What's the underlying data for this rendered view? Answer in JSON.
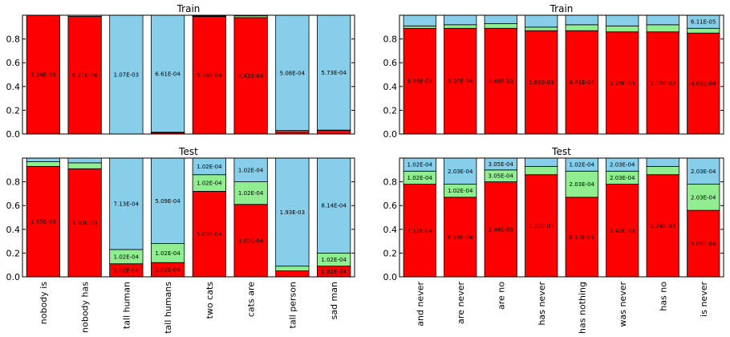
{
  "chart_data": [
    {
      "type": "bar",
      "stacked": true,
      "title": "Train",
      "categories": [
        "nobody is",
        "nobody has",
        "tall human",
        "tall humans",
        "two cats",
        "cats are",
        "tall person",
        "sad man"
      ],
      "ylim": [
        0,
        1
      ],
      "yticks": [
        "0.0",
        "0.2",
        "0.4",
        "0.6",
        "0.8"
      ],
      "series": [
        {
          "color": "#ff0000",
          "values": [
            1.0,
            0.99,
            0.0,
            0.01,
            0.99,
            0.98,
            0.02,
            0.03
          ],
          "labels": [
            "3.24E-03",
            "6.21E-04",
            "",
            "",
            "5.24E-04",
            "4.42E-04",
            "",
            ""
          ]
        },
        {
          "color": "#90ee90",
          "values": [
            0.0,
            0.0,
            0.0,
            0.005,
            0.005,
            0.015,
            0.01,
            0.003
          ],
          "labels": [
            "",
            "",
            "",
            "",
            "",
            "",
            "",
            ""
          ]
        },
        {
          "color": "#87ceeb",
          "values": [
            0.0,
            0.01,
            1.0,
            0.985,
            0.005,
            0.005,
            0.97,
            0.967
          ],
          "labels": [
            "",
            "",
            "1.07E-03",
            "6.61E-04",
            "",
            "",
            "5.08E-04",
            "5.73E-04"
          ]
        }
      ]
    },
    {
      "type": "bar",
      "stacked": true,
      "title": "Train",
      "categories": [
        "and never",
        "are never",
        "are no",
        "has never",
        "has nothing",
        "was never",
        "has no",
        "is never"
      ],
      "ylim": [
        0,
        1
      ],
      "yticks": [
        "0.0",
        "0.2",
        "0.4",
        "0.6",
        "0.8"
      ],
      "series": [
        {
          "color": "#ff0000",
          "values": [
            0.89,
            0.89,
            0.89,
            0.87,
            0.87,
            0.86,
            0.86,
            0.85
          ],
          "labels": [
            "5.58E-04",
            "5.07E-04",
            "4.49E-03",
            "1.69E-03",
            "4.41E-04",
            "1.29E-03",
            "2.15E-03",
            "4.69E-04"
          ]
        },
        {
          "color": "#90ee90",
          "values": [
            0.02,
            0.03,
            0.04,
            0.03,
            0.05,
            0.05,
            0.06,
            0.04
          ],
          "labels": [
            "",
            "",
            "",
            "",
            "",
            "",
            "",
            ""
          ]
        },
        {
          "color": "#87ceeb",
          "values": [
            0.09,
            0.08,
            0.07,
            0.1,
            0.08,
            0.09,
            0.08,
            0.11
          ],
          "labels": [
            "",
            "",
            "",
            "",
            "",
            "",
            "",
            "6.11E-05"
          ]
        }
      ]
    },
    {
      "type": "bar",
      "stacked": true,
      "title": "Test",
      "categories": [
        "nobody is",
        "nobody has",
        "tall human",
        "tall humans",
        "two cats",
        "cats are",
        "tall person",
        "sad man"
      ],
      "ylim": [
        0,
        1
      ],
      "yticks": [
        "0.0",
        "0.2",
        "0.4",
        "0.6",
        "0.8"
      ],
      "series": [
        {
          "color": "#ff0000",
          "values": [
            0.93,
            0.91,
            0.11,
            0.12,
            0.72,
            0.61,
            0.05,
            0.09
          ],
          "labels": [
            "2.65E-03",
            "1.83E-03",
            "1.02E-04",
            "1.02E-04",
            "5.09E-04",
            "3.05E-04",
            "",
            "1.02E-04"
          ]
        },
        {
          "color": "#90ee90",
          "values": [
            0.04,
            0.05,
            0.12,
            0.16,
            0.14,
            0.19,
            0.04,
            0.11
          ],
          "labels": [
            "",
            "",
            "1.02E-04",
            "1.02E-04",
            "1.02E-04",
            "1.02E-04",
            "",
            "1.02E-04"
          ]
        },
        {
          "color": "#87ceeb",
          "values": [
            0.03,
            0.04,
            0.77,
            0.72,
            0.14,
            0.2,
            0.91,
            0.8
          ],
          "labels": [
            "",
            "",
            "7.13E-04",
            "5.09E-04",
            "1.02E-04",
            "1.02E-04",
            "1.93E-03",
            "8.14E-04"
          ]
        }
      ]
    },
    {
      "type": "bar",
      "stacked": true,
      "title": "Test",
      "categories": [
        "and never",
        "are never",
        "are no",
        "has never",
        "has nothing",
        "was never",
        "has no",
        "is never"
      ],
      "ylim": [
        0,
        1
      ],
      "yticks": [
        "0.0",
        "0.2",
        "0.4",
        "0.6",
        "0.8"
      ],
      "series": [
        {
          "color": "#ff0000",
          "values": [
            0.78,
            0.67,
            0.8,
            0.86,
            0.67,
            0.78,
            0.86,
            0.56
          ],
          "labels": [
            "7.12E-04",
            "6.10E-04",
            "2.44E-03",
            "1.22E-03",
            "6.10E-04",
            "1.42E-03",
            "2.24E-03",
            "5.09E-04"
          ]
        },
        {
          "color": "#90ee90",
          "values": [
            0.11,
            0.11,
            0.1,
            0.07,
            0.22,
            0.11,
            0.07,
            0.22
          ],
          "labels": [
            "1.02E-04",
            "1.02E-04",
            "3.05E-04",
            "",
            "2.03E-04",
            "2.03E-04",
            "",
            "2.03E-04"
          ]
        },
        {
          "color": "#87ceeb",
          "values": [
            0.11,
            0.22,
            0.1,
            0.07,
            0.11,
            0.11,
            0.07,
            0.22
          ],
          "labels": [
            "1.02E-04",
            "2.03E-04",
            "3.05E-04",
            "",
            "1.02E-04",
            "2.03E-04",
            "",
            "2.03E-04"
          ]
        }
      ]
    }
  ]
}
